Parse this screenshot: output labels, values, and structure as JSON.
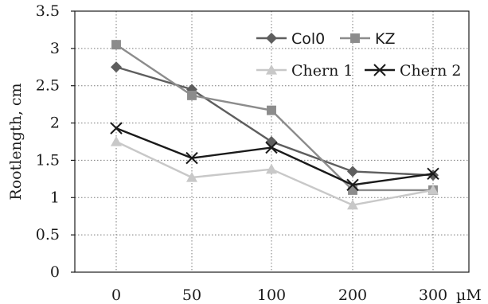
{
  "chart_data": {
    "type": "line",
    "title": "",
    "xlabel": "",
    "x_unit": "µM",
    "ylabel": "Rootlength, cm",
    "categories": [
      "0",
      "50",
      "100",
      "200",
      "300"
    ],
    "ylim": [
      0,
      3.5
    ],
    "yticks": [
      "0",
      "0.5",
      "1",
      "1.5",
      "2",
      "2.5",
      "3",
      "3.5"
    ],
    "grid": true,
    "legend_position": "top-right",
    "series": [
      {
        "name": "Col0",
        "values": [
          2.75,
          2.45,
          1.75,
          1.35,
          1.3
        ],
        "marker": "diamond",
        "color": "#5e5e5e"
      },
      {
        "name": "KZ",
        "values": [
          3.05,
          2.37,
          2.17,
          1.1,
          1.1
        ],
        "marker": "square",
        "color": "#8c8c8c"
      },
      {
        "name": "Chern 1",
        "values": [
          1.75,
          1.27,
          1.38,
          0.9,
          1.1
        ],
        "marker": "triangle",
        "color": "#c8c8c8"
      },
      {
        "name": "Chern 2",
        "values": [
          1.93,
          1.53,
          1.67,
          1.17,
          1.32
        ],
        "marker": "x",
        "color": "#1a1a1a"
      }
    ]
  }
}
